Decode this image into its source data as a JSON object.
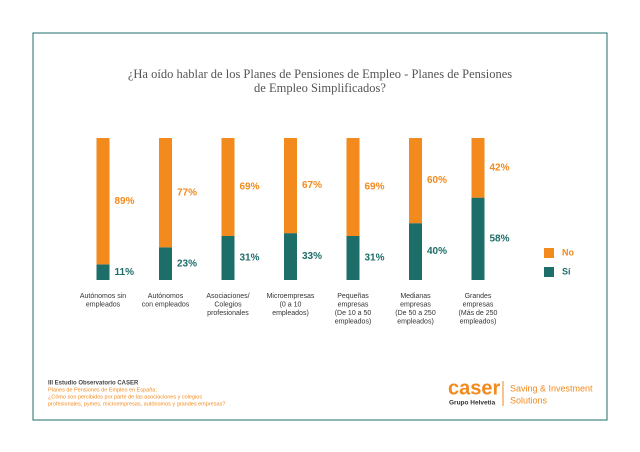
{
  "chart_data": {
    "type": "stacked_bar",
    "title": [
      "¿Ha oído hablar de los Planes de Pensiones de Empleo - Planes de Pensiones",
      "de Empleo Simplificados?"
    ],
    "categories": [
      [
        "Autónomos sin",
        "empleados"
      ],
      [
        "Autónomos",
        "con empleados"
      ],
      [
        "Asociaciones/",
        "Colegios",
        "profesionales"
      ],
      [
        "Microempresas",
        "(0 a 10",
        "empleados)"
      ],
      [
        "Pequeñas",
        "empresas",
        "(De 10 a 50",
        "empleados)"
      ],
      [
        "Medianas",
        "empresas",
        "(De 50 a 250",
        "empleados)"
      ],
      [
        "Grandes",
        "empresas",
        "(Más de 250",
        "empleados)"
      ]
    ],
    "series": [
      {
        "name": "Sí",
        "color": "#1d6d69",
        "values": [
          11,
          23,
          31,
          33,
          31,
          40,
          58
        ],
        "value_labels": [
          "11%",
          "23%",
          "31%",
          "33%",
          "31%",
          "40%",
          "58%"
        ]
      },
      {
        "name": "No",
        "color": "#f28a1e",
        "values": [
          89,
          77,
          69,
          67,
          69,
          60,
          42
        ],
        "value_labels": [
          "89%",
          "77%",
          "69%",
          "67%",
          "69%",
          "60%",
          "42%"
        ]
      }
    ],
    "legend": "right",
    "footer": {
      "source": "III Estudio Observatorio CASER",
      "lines": [
        "Planes de Pensiones de Empleo en España:",
        "¿Cómo son percibidos por parte de las asociaciones y colegios",
        "profesionales, pymes, microempresas, autónomos y grandes empresas?"
      ]
    },
    "logo": {
      "brand": "caser",
      "group": "Grupo Helvetia",
      "tagline": [
        "Saving & Investment",
        "Solutions"
      ]
    }
  }
}
